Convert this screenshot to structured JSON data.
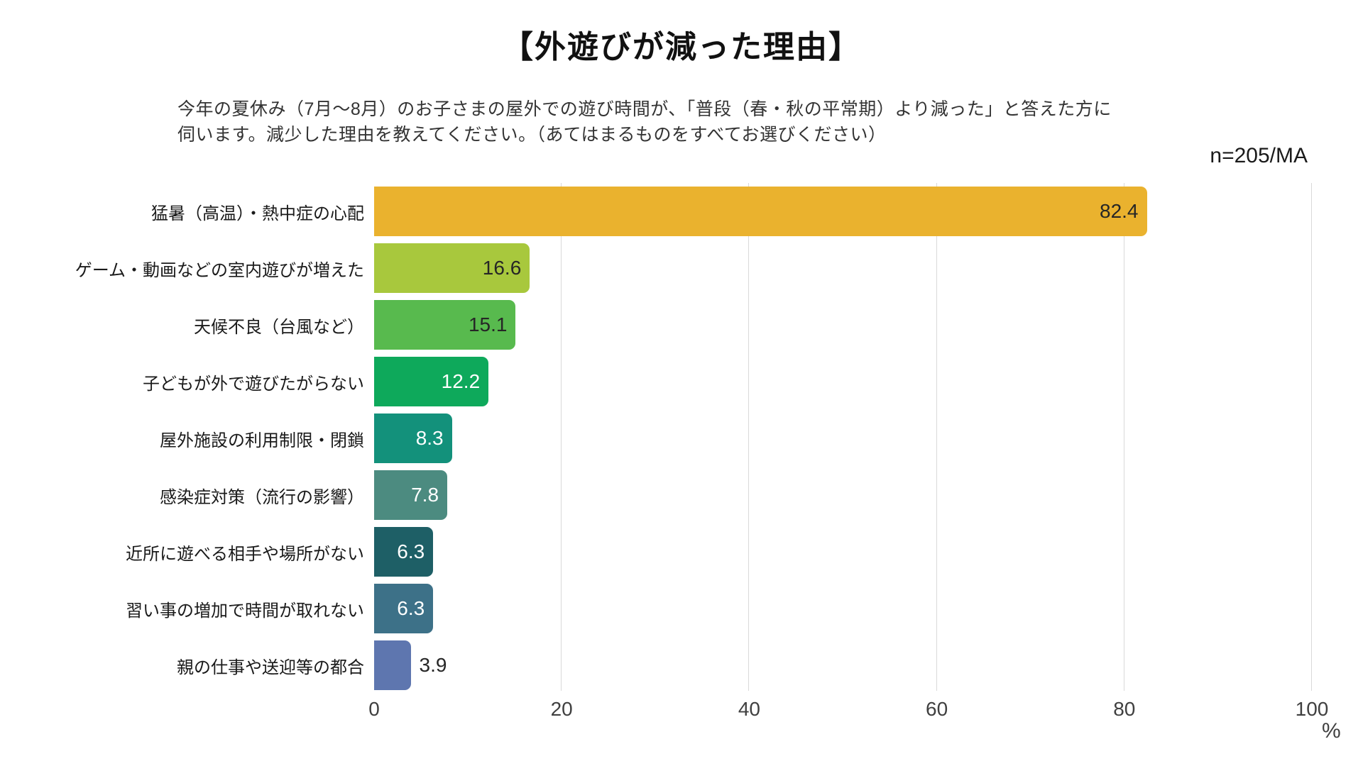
{
  "title": "【外遊びが減った理由】",
  "subtitle": {
    "line1": "今年の夏休み（7月～8月）のお子さまの屋外での遊び時間が、「普段（春・秋の平常期）より減った」と答えた方に",
    "line2": "伺います。減少した理由を教えてください。（あてはまるものをすべてお選びください）"
  },
  "sample_label": "n=205/MA",
  "axis_unit_label": "%",
  "chart_data": {
    "type": "bar",
    "orientation": "horizontal",
    "title": "【外遊びが減った理由】",
    "categories": [
      "猛暑（高温）・熱中症の心配",
      "ゲーム・動画などの室内遊びが増えた",
      "天候不良（台風など）",
      "子どもが外で遊びたがらない",
      "屋外施設の利用制限・閉鎖",
      "感染症対策（流行の影響）",
      "近所に遊べる相手や場所がない",
      "習い事の増加で時間が取れない",
      "親の仕事や送迎等の都合"
    ],
    "values": [
      82.4,
      16.6,
      15.1,
      12.2,
      8.3,
      7.8,
      6.3,
      6.3,
      3.9
    ],
    "bar_colors": [
      "#EAB22E",
      "#A8C83D",
      "#58BA4E",
      "#0EA95B",
      "#13917B",
      "#4C8B80",
      "#1E5F66",
      "#3D7188",
      "#5E76AF"
    ],
    "value_label_styles": [
      "inside-dark",
      "inside-dark",
      "inside-dark",
      "inside-white",
      "inside-white",
      "inside-white",
      "inside-white",
      "inside-white",
      "outside-dark"
    ],
    "xlabel": "%",
    "ylabel": "",
    "xlim": [
      0,
      100
    ],
    "x_ticks": [
      0,
      20,
      40,
      60,
      80,
      100
    ],
    "grid": "vertical-light-gray",
    "legend": "none",
    "sample_note": "n=205/MA"
  }
}
